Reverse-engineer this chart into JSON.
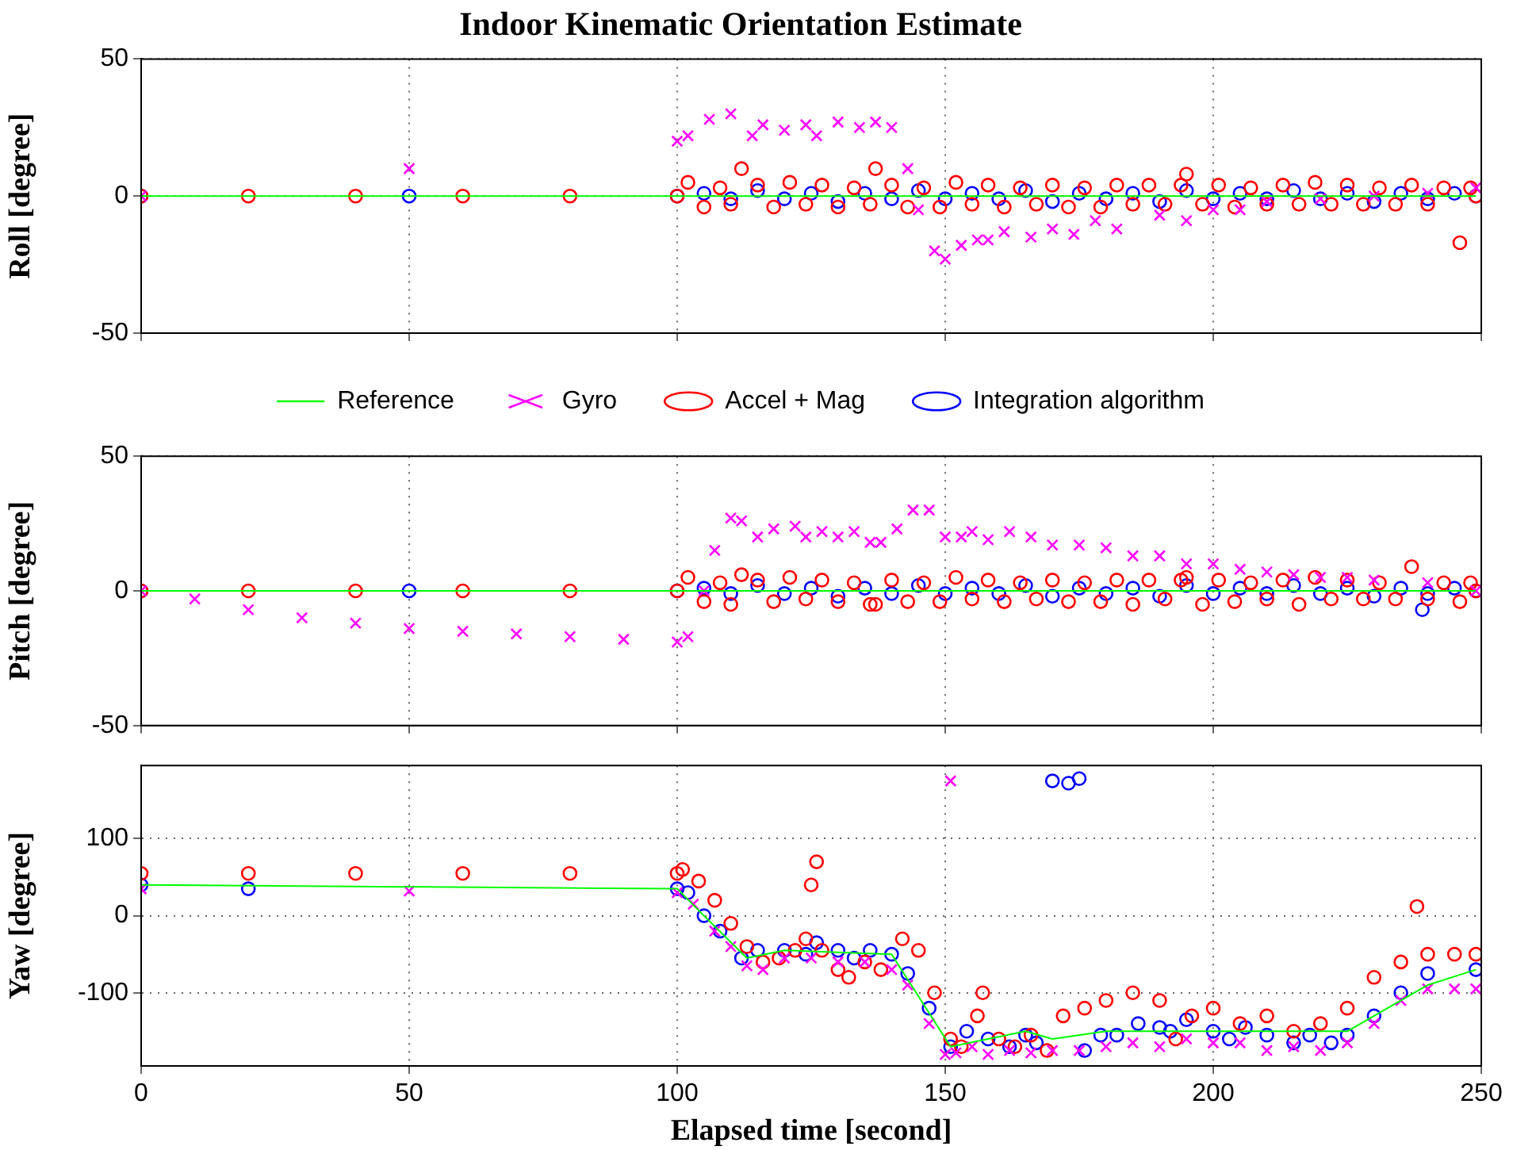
{
  "chart_data": [
    {
      "type": "scatter",
      "title": "Indoor Kinematic Orientation Estimate",
      "ylabel": "Roll [degree]",
      "xlim": [
        0,
        250
      ],
      "xticks": [
        0,
        50,
        100,
        150,
        200,
        250
      ],
      "ylim": [
        -50,
        50
      ],
      "yticks": [
        -50,
        0,
        50
      ],
      "grid": true,
      "legend": "bottom",
      "tick_labels": "y",
      "series": [
        {
          "name": "Reference",
          "type": "line",
          "marker": "none",
          "color": "#00ff00",
          "x": [
            0,
            249
          ],
          "values": [
            0,
            0
          ]
        },
        {
          "name": "Gyro",
          "type": "scatter",
          "marker": "cross",
          "color": "#ff00ff",
          "x": [
            0,
            50,
            100,
            102,
            106,
            110,
            114,
            116,
            120,
            124,
            126,
            130,
            134,
            137,
            140,
            143,
            145,
            148,
            150,
            153,
            156,
            158,
            161,
            166,
            170,
            174,
            178,
            182,
            190,
            195,
            200,
            205,
            210,
            220,
            230,
            240,
            249
          ],
          "values": [
            0,
            10,
            20,
            22,
            28,
            30,
            22,
            26,
            24,
            26,
            22,
            27,
            25,
            27,
            25,
            10,
            -5,
            -20,
            -23,
            -18,
            -16,
            -16,
            -13,
            -15,
            -12,
            -14,
            -9,
            -12,
            -7,
            -9,
            -5,
            -5,
            -2,
            -1,
            0,
            1,
            3
          ]
        },
        {
          "name": "Accel + Mag",
          "type": "scatter",
          "marker": "circle",
          "color": "#ff0000",
          "x": [
            0,
            20,
            40,
            60,
            80,
            100,
            102,
            105,
            108,
            110,
            112,
            115,
            118,
            121,
            124,
            127,
            130,
            133,
            136,
            137,
            140,
            143,
            146,
            149,
            152,
            155,
            158,
            161,
            164,
            167,
            170,
            173,
            176,
            179,
            182,
            185,
            188,
            191,
            194,
            195,
            198,
            201,
            204,
            207,
            210,
            213,
            216,
            219,
            222,
            225,
            228,
            231,
            234,
            237,
            240,
            243,
            246,
            248,
            249
          ],
          "values": [
            0,
            0,
            0,
            0,
            0,
            0,
            5,
            -4,
            3,
            -3,
            10,
            4,
            -4,
            5,
            -3,
            4,
            -4,
            3,
            -3,
            10,
            4,
            -4,
            3,
            -4,
            5,
            -3,
            4,
            -4,
            3,
            -3,
            4,
            -4,
            3,
            -4,
            4,
            -3,
            4,
            -3,
            4,
            8,
            -3,
            4,
            -4,
            3,
            -3,
            4,
            -3,
            5,
            -3,
            4,
            -3,
            3,
            -3,
            4,
            -3,
            3,
            -17,
            3,
            0
          ]
        },
        {
          "name": "Integration algorithm",
          "type": "scatter",
          "marker": "circle",
          "color": "#0000ff",
          "x": [
            0,
            50,
            100,
            105,
            110,
            115,
            120,
            125,
            130,
            135,
            140,
            145,
            150,
            155,
            160,
            165,
            170,
            175,
            180,
            185,
            190,
            195,
            200,
            205,
            210,
            215,
            220,
            225,
            230,
            235,
            240,
            245,
            249
          ],
          "values": [
            0,
            0,
            0,
            1,
            -1,
            2,
            -1,
            1,
            -2,
            1,
            -1,
            2,
            -1,
            1,
            -1,
            2,
            -2,
            1,
            -1,
            1,
            -2,
            2,
            -1,
            1,
            -1,
            2,
            -1,
            1,
            -2,
            1,
            -1,
            1,
            0
          ]
        }
      ]
    },
    {
      "type": "scatter",
      "ylabel": "Pitch [degree]",
      "xlim": [
        0,
        250
      ],
      "xticks": [
        0,
        50,
        100,
        150,
        200,
        250
      ],
      "ylim": [
        -50,
        50
      ],
      "yticks": [
        -50,
        0,
        50
      ],
      "grid": true,
      "tick_labels": "y",
      "series": [
        {
          "type": "line",
          "marker": "none",
          "color": "#00ff00",
          "x": [
            0,
            249
          ],
          "values": [
            0,
            0
          ]
        },
        {
          "type": "scatter",
          "marker": "cross",
          "color": "#ff00ff",
          "x": [
            0,
            10,
            20,
            30,
            40,
            50,
            60,
            70,
            80,
            90,
            100,
            102,
            105,
            107,
            110,
            112,
            115,
            118,
            122,
            124,
            127,
            130,
            133,
            136,
            138,
            141,
            144,
            147,
            150,
            153,
            155,
            158,
            162,
            166,
            170,
            175,
            180,
            185,
            190,
            195,
            200,
            205,
            210,
            215,
            220,
            225,
            230,
            240,
            249
          ],
          "values": [
            0,
            -3,
            -7,
            -10,
            -12,
            -14,
            -15,
            -16,
            -17,
            -18,
            -19,
            -17,
            0,
            15,
            27,
            26,
            20,
            23,
            24,
            20,
            22,
            20,
            22,
            18,
            18,
            23,
            30,
            30,
            20,
            20,
            22,
            19,
            22,
            20,
            17,
            17,
            16,
            13,
            13,
            10,
            10,
            8,
            7,
            6,
            5,
            5,
            4,
            3,
            0
          ]
        },
        {
          "type": "scatter",
          "marker": "circle",
          "color": "#ff0000",
          "x": [
            0,
            20,
            40,
            60,
            80,
            100,
            102,
            105,
            108,
            110,
            112,
            115,
            118,
            121,
            124,
            127,
            130,
            133,
            136,
            137,
            140,
            143,
            146,
            149,
            152,
            155,
            158,
            161,
            164,
            167,
            170,
            173,
            176,
            179,
            182,
            185,
            188,
            191,
            194,
            195,
            198,
            201,
            204,
            207,
            210,
            213,
            216,
            219,
            222,
            225,
            228,
            231,
            234,
            237,
            240,
            243,
            246,
            248,
            249
          ],
          "values": [
            0,
            0,
            0,
            0,
            0,
            0,
            5,
            -4,
            3,
            -5,
            6,
            4,
            -4,
            5,
            -3,
            4,
            -4,
            3,
            -5,
            -5,
            4,
            -4,
            3,
            -4,
            5,
            -3,
            4,
            -4,
            3,
            -3,
            4,
            -4,
            3,
            -4,
            4,
            -5,
            4,
            -3,
            4,
            5,
            -5,
            4,
            -4,
            3,
            -3,
            4,
            -5,
            5,
            -3,
            4,
            -3,
            3,
            -3,
            9,
            -3,
            3,
            -4,
            3,
            0
          ]
        },
        {
          "type": "scatter",
          "marker": "circle",
          "color": "#0000ff",
          "x": [
            0,
            50,
            100,
            105,
            110,
            115,
            120,
            125,
            130,
            135,
            140,
            145,
            150,
            155,
            160,
            165,
            170,
            175,
            180,
            185,
            190,
            195,
            200,
            205,
            210,
            215,
            220,
            225,
            230,
            235,
            239,
            240,
            245,
            249
          ],
          "values": [
            0,
            0,
            0,
            1,
            -1,
            2,
            -1,
            1,
            -2,
            1,
            -1,
            2,
            -1,
            1,
            -1,
            2,
            -2,
            1,
            -1,
            1,
            -2,
            2,
            -1,
            1,
            -1,
            2,
            -1,
            1,
            -2,
            1,
            -7,
            -1,
            1,
            0
          ]
        }
      ]
    },
    {
      "type": "scatter",
      "ylabel": "Yaw [degree]",
      "xlabel": "Elapsed time [second]",
      "xlim": [
        0,
        250
      ],
      "xticks": [
        0,
        50,
        100,
        150,
        200,
        250
      ],
      "ylim": [
        -195,
        195
      ],
      "yticks": [
        -100,
        0,
        100
      ],
      "grid": true,
      "series": [
        {
          "type": "line",
          "marker": "none",
          "color": "#00ff00",
          "x": [
            0,
            100,
            105,
            113,
            120,
            140,
            151,
            158,
            165,
            170,
            180,
            200,
            225,
            240,
            249
          ],
          "values": [
            40,
            35,
            0,
            -55,
            -45,
            -50,
            -170,
            -160,
            -150,
            -160,
            -150,
            -150,
            -150,
            -90,
            -70
          ]
        },
        {
          "type": "scatter",
          "marker": "cross",
          "color": "#ff00ff",
          "x": [
            0,
            50,
            100,
            103,
            107,
            110,
            113,
            116,
            120,
            125,
            130,
            135,
            140,
            143,
            147,
            150,
            151,
            152,
            155,
            158,
            162,
            166,
            170,
            175,
            180,
            185,
            190,
            195,
            200,
            205,
            210,
            215,
            220,
            225,
            230,
            235,
            240,
            245,
            249
          ],
          "values": [
            35,
            32,
            30,
            15,
            -20,
            -40,
            -65,
            -70,
            -55,
            -55,
            -60,
            -60,
            -70,
            -90,
            -140,
            -180,
            175,
            -178,
            -170,
            -180,
            -175,
            -178,
            -175,
            -175,
            -170,
            -165,
            -170,
            -160,
            -165,
            -165,
            -175,
            -170,
            -175,
            -165,
            -140,
            -110,
            -95,
            -95,
            -95
          ]
        },
        {
          "type": "scatter",
          "marker": "circle",
          "color": "#ff0000",
          "x": [
            0,
            20,
            40,
            60,
            80,
            100,
            101,
            104,
            107,
            110,
            113,
            116,
            119,
            122,
            124,
            125,
            126,
            127,
            130,
            132,
            135,
            138,
            142,
            145,
            148,
            151,
            153,
            156,
            157,
            160,
            163,
            166,
            169,
            172,
            176,
            180,
            185,
            190,
            193,
            196,
            200,
            205,
            210,
            215,
            220,
            225,
            230,
            235,
            238,
            240,
            245,
            249
          ],
          "values": [
            55,
            55,
            55,
            55,
            55,
            55,
            60,
            45,
            20,
            -10,
            -40,
            -60,
            -55,
            -45,
            -30,
            40,
            70,
            -45,
            -70,
            -80,
            -60,
            -70,
            -30,
            -45,
            -100,
            -160,
            -170,
            -130,
            -100,
            -160,
            -170,
            -155,
            -175,
            -130,
            -120,
            -110,
            -100,
            -110,
            -160,
            -130,
            -120,
            -140,
            -130,
            -150,
            -140,
            -120,
            -80,
            -60,
            12,
            -50,
            -50,
            -50
          ]
        },
        {
          "type": "scatter",
          "marker": "circle",
          "color": "#0000ff",
          "x": [
            0,
            20,
            100,
            102,
            105,
            108,
            112,
            115,
            120,
            124,
            126,
            130,
            133,
            136,
            140,
            143,
            147,
            151,
            154,
            158,
            162,
            165,
            167,
            170,
            173,
            175,
            176,
            179,
            182,
            186,
            190,
            192,
            195,
            200,
            203,
            206,
            210,
            215,
            218,
            222,
            225,
            230,
            235,
            240,
            249
          ],
          "values": [
            40,
            35,
            35,
            30,
            0,
            -20,
            -55,
            -45,
            -45,
            -50,
            -35,
            -45,
            -55,
            -45,
            -50,
            -75,
            -120,
            -170,
            -150,
            -160,
            -170,
            -155,
            -165,
            175,
            172,
            178,
            -175,
            -155,
            -155,
            -140,
            -145,
            -150,
            -135,
            -150,
            -160,
            -145,
            -155,
            -165,
            -155,
            -165,
            -155,
            -130,
            -100,
            -75,
            -70
          ]
        }
      ]
    }
  ]
}
